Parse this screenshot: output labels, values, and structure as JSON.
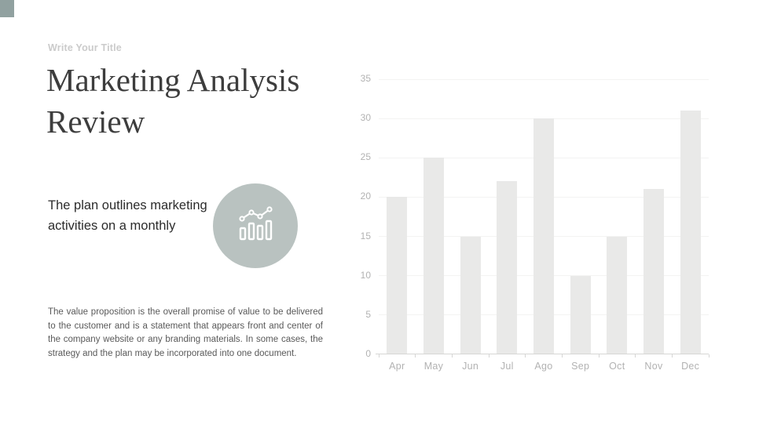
{
  "slide": {
    "corner_square_color": "#91a1a0",
    "eyebrow": "Write Your Title",
    "title": "Marketing Analysis Review",
    "subtitle": "The plan outlines marketing activities on a monthly",
    "body": "The value proposition is the overall promise of value to be delivered to the customer and is a statement that appears front and center of the company website or any branding materials. In some cases, the strategy and the plan may be incorporated into one document.",
    "icon": {
      "name": "bar-line-chart-icon",
      "circle_color": "#b9c2c0",
      "glyph_color": "#ffffff"
    },
    "text_colors": {
      "eyebrow": "#cbcbcb",
      "title": "#3d3d3d",
      "subtitle": "#2b2b2b",
      "body": "#595959"
    }
  },
  "chart_data": {
    "type": "bar",
    "categories": [
      "Apr",
      "May",
      "Jun",
      "Jul",
      "Ago",
      "Sep",
      "Oct",
      "Nov",
      "Dec"
    ],
    "values": [
      20,
      25,
      15,
      22,
      30,
      10,
      15,
      21,
      31
    ],
    "title": "",
    "xlabel": "",
    "ylabel": "",
    "ylim": [
      0,
      35
    ],
    "ytick_step": 5,
    "grid": true,
    "legend_position": "none",
    "bar_color": "#e9e9e8",
    "grid_color": "#f3f3f2",
    "axis_color": "#d6d6d5",
    "tick_label_color": "#b2b2b2"
  }
}
